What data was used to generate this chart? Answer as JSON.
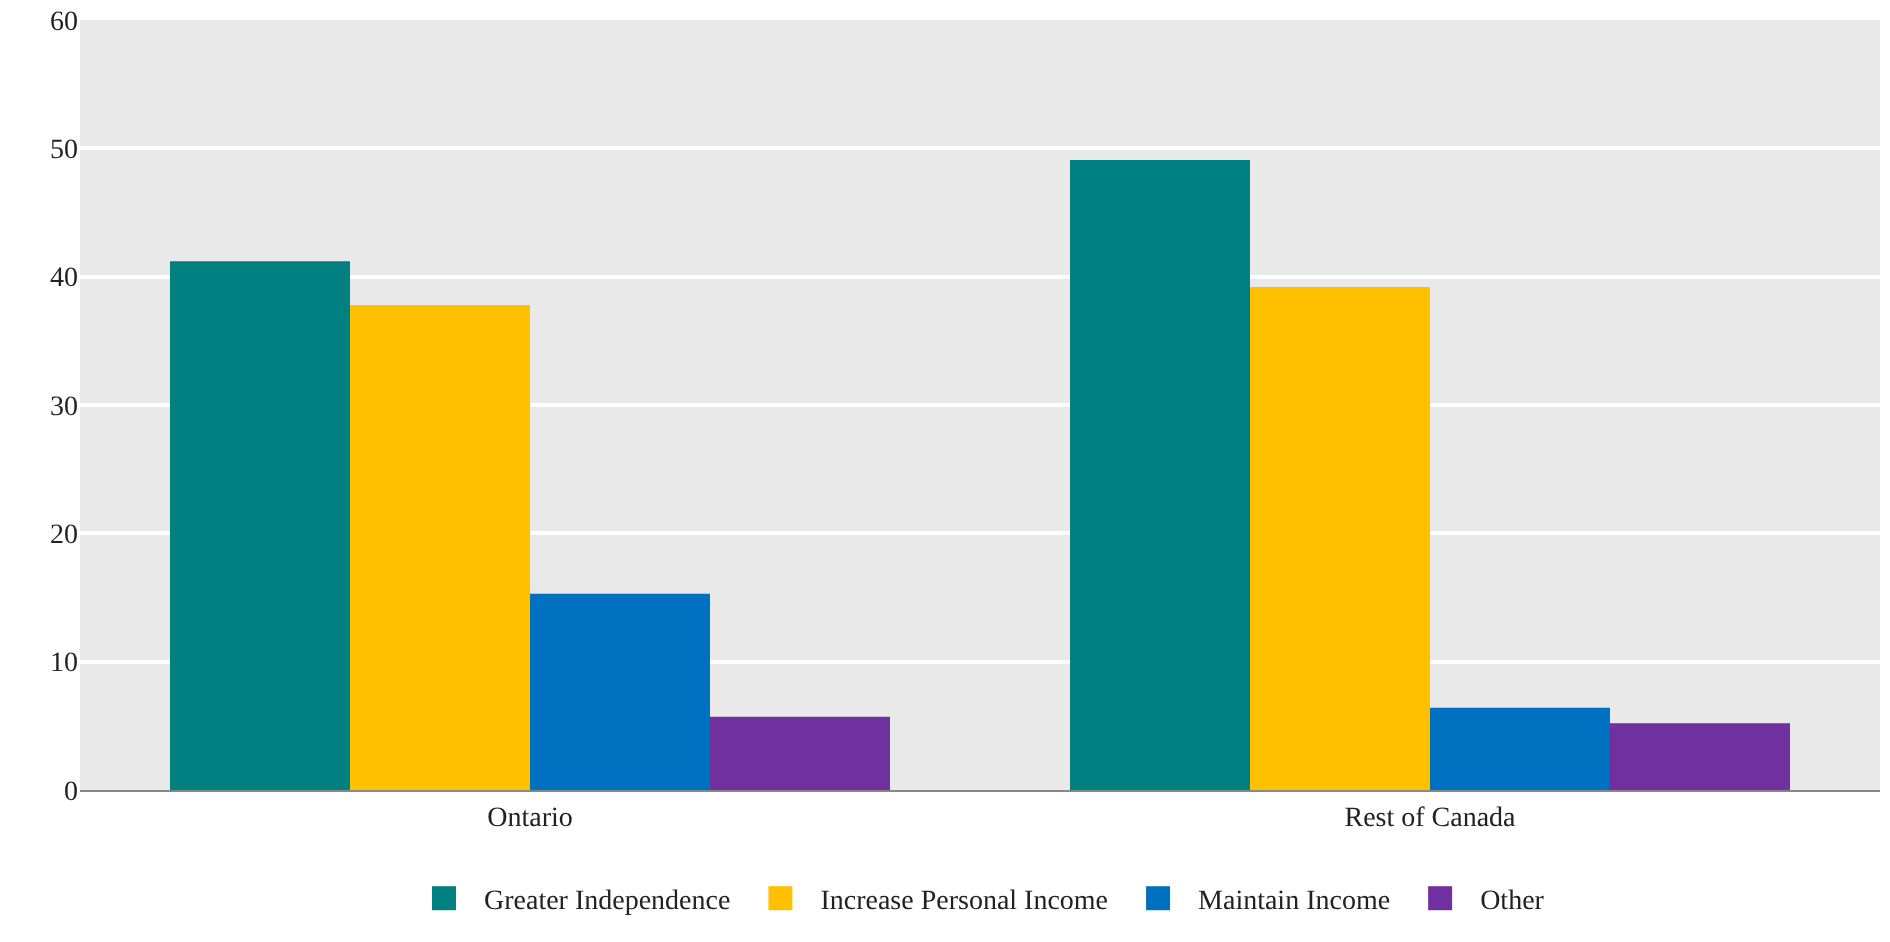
{
  "chart_data": {
    "type": "bar",
    "categories": [
      "Ontario",
      "Rest of Canada"
    ],
    "series": [
      {
        "name": "Greater Independence",
        "color": "#008080",
        "values": [
          41.2,
          49.1
        ]
      },
      {
        "name": "Increase Personal Income",
        "color": "#ffc000",
        "values": [
          37.8,
          39.2
        ]
      },
      {
        "name": "Maintain Income",
        "color": "#0070c0",
        "values": [
          15.3,
          6.4
        ]
      },
      {
        "name": "Other",
        "color": "#7030a0",
        "values": [
          5.7,
          5.2
        ]
      }
    ],
    "ylim": [
      0,
      60
    ],
    "yticks": [
      0,
      10,
      20,
      30,
      40,
      50,
      60
    ],
    "grid": "y",
    "legend": "bottom"
  }
}
